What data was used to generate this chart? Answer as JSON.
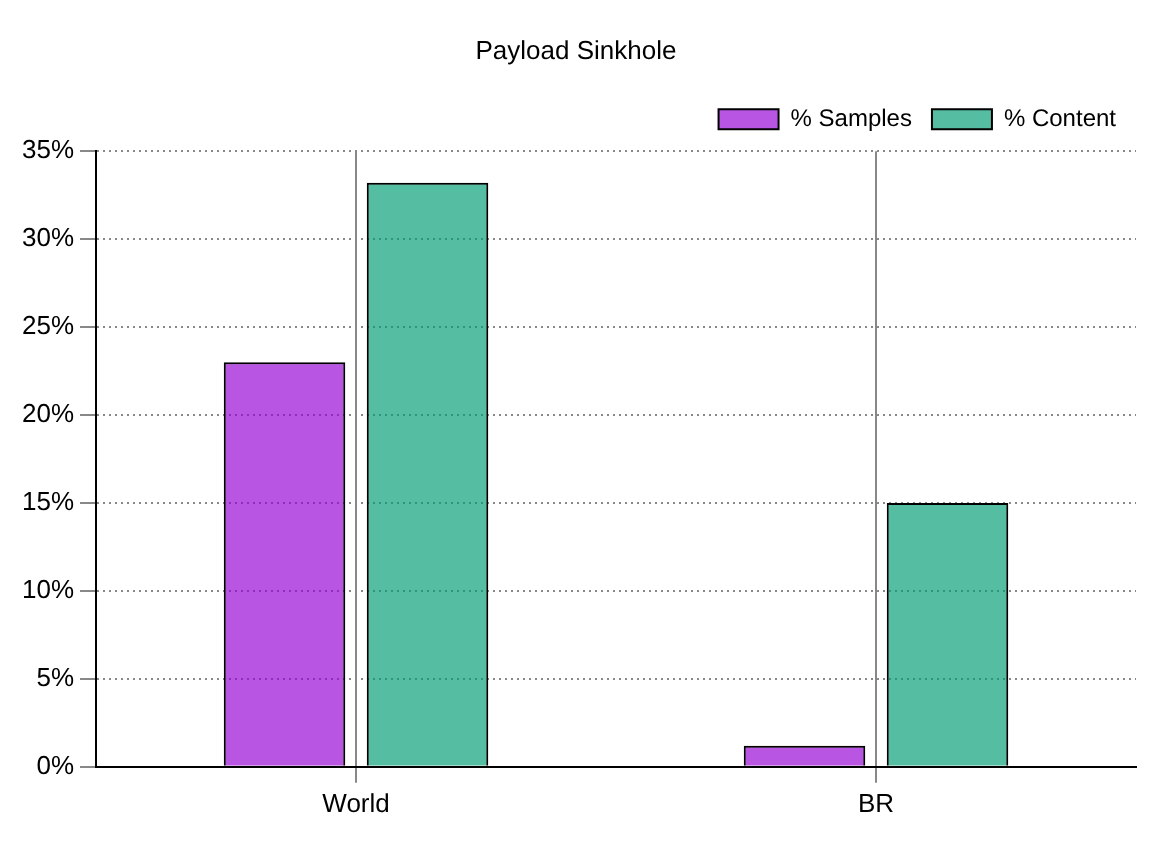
{
  "chart_data": {
    "type": "bar",
    "title": "Payload Sinkhole",
    "categories": [
      "World",
      "BR"
    ],
    "series": [
      {
        "name": "% Samples",
        "color": "#9400d3",
        "values": [
          23,
          1.2
        ]
      },
      {
        "name": "% Content",
        "color": "#009e73",
        "values": [
          33.2,
          15
        ]
      }
    ],
    "ylim": [
      0,
      35
    ],
    "yticks": [
      {
        "value": 0,
        "label": "0%"
      },
      {
        "value": 5,
        "label": "5%"
      },
      {
        "value": 10,
        "label": "10%"
      },
      {
        "value": 15,
        "label": "15%"
      },
      {
        "value": 20,
        "label": "20%"
      },
      {
        "value": 25,
        "label": "25%"
      },
      {
        "value": 30,
        "label": "30%"
      },
      {
        "value": 35,
        "label": "35%"
      }
    ],
    "grid": true,
    "legend": "top right"
  }
}
